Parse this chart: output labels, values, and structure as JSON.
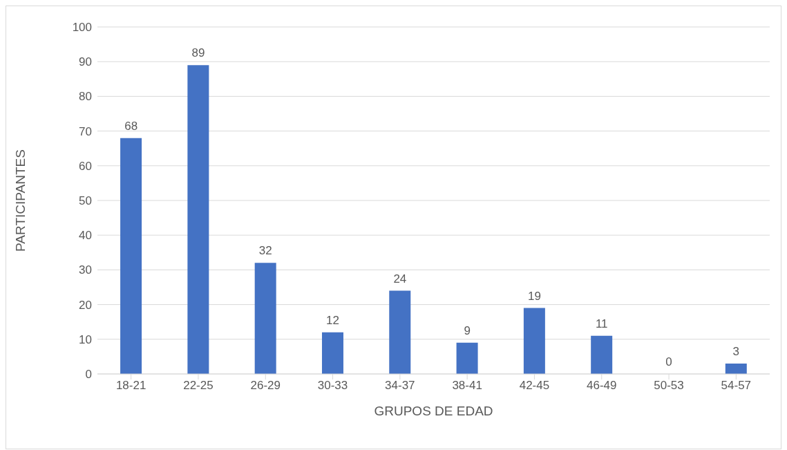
{
  "chart_data": {
    "type": "bar",
    "xlabel": "GRUPOS DE EDAD",
    "ylabel": "PARTICIPANTES",
    "categories": [
      "18-21",
      "22-25",
      "26-29",
      "30-33",
      "34-37",
      "38-41",
      "42-45",
      "46-49",
      "50-53",
      "54-57"
    ],
    "values": [
      68,
      89,
      32,
      12,
      24,
      9,
      19,
      11,
      0,
      3
    ],
    "color": "#4472c4",
    "ylim": [
      0,
      100
    ],
    "yticks": [
      0,
      10,
      20,
      30,
      40,
      50,
      60,
      70,
      80,
      90,
      100
    ],
    "grid": "y",
    "data_labels": true,
    "legend": false
  }
}
